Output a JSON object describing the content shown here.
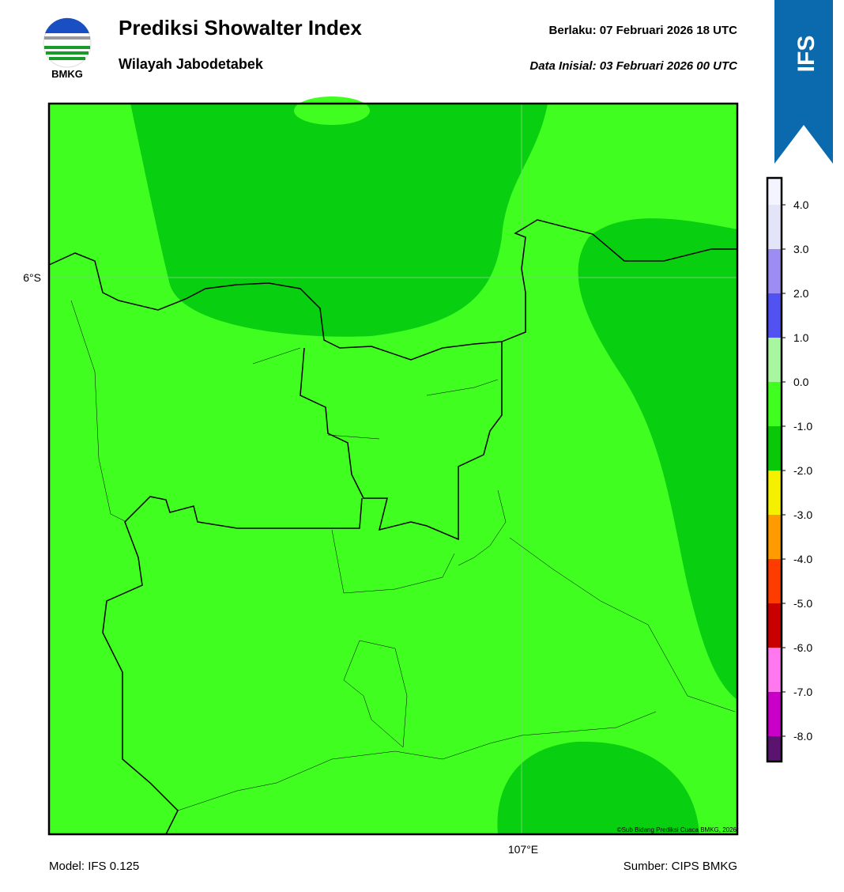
{
  "header": {
    "logo_text": "BMKG",
    "title": "Prediksi Showalter Index",
    "subtitle": "Wilayah Jabodetabek",
    "valid": "Berlaku:  07 Februari 2026 18 UTC",
    "init": "Data Inisial:  03 Februari 2026 00 UTC",
    "badge": "IFS"
  },
  "map": {
    "lat_label": "6°S",
    "lon_label": "107°E",
    "credit": "©Sub Bidang Prediksi Cuaca BMKG, 2026"
  },
  "colorbar": {
    "labels": [
      "4.0",
      "3.0",
      "2.0",
      "1.0",
      "0.0",
      "-1.0",
      "-2.0",
      "-3.0",
      "-4.0",
      "-5.0",
      "-6.0",
      "-7.0",
      "-8.0"
    ],
    "colors": [
      "#f4f4fe",
      "#e4e4f8",
      "#9d8cf2",
      "#5252f2",
      "#a8f7a0",
      "#40ff20",
      "#08c808",
      "#f5f000",
      "#ff9a00",
      "#ff3c00",
      "#c80000",
      "#ff78f0",
      "#c800c8",
      "#5a1470"
    ]
  },
  "footer": {
    "model": "Model: IFS 0.125",
    "source": "Sumber: CIPS BMKG"
  }
}
